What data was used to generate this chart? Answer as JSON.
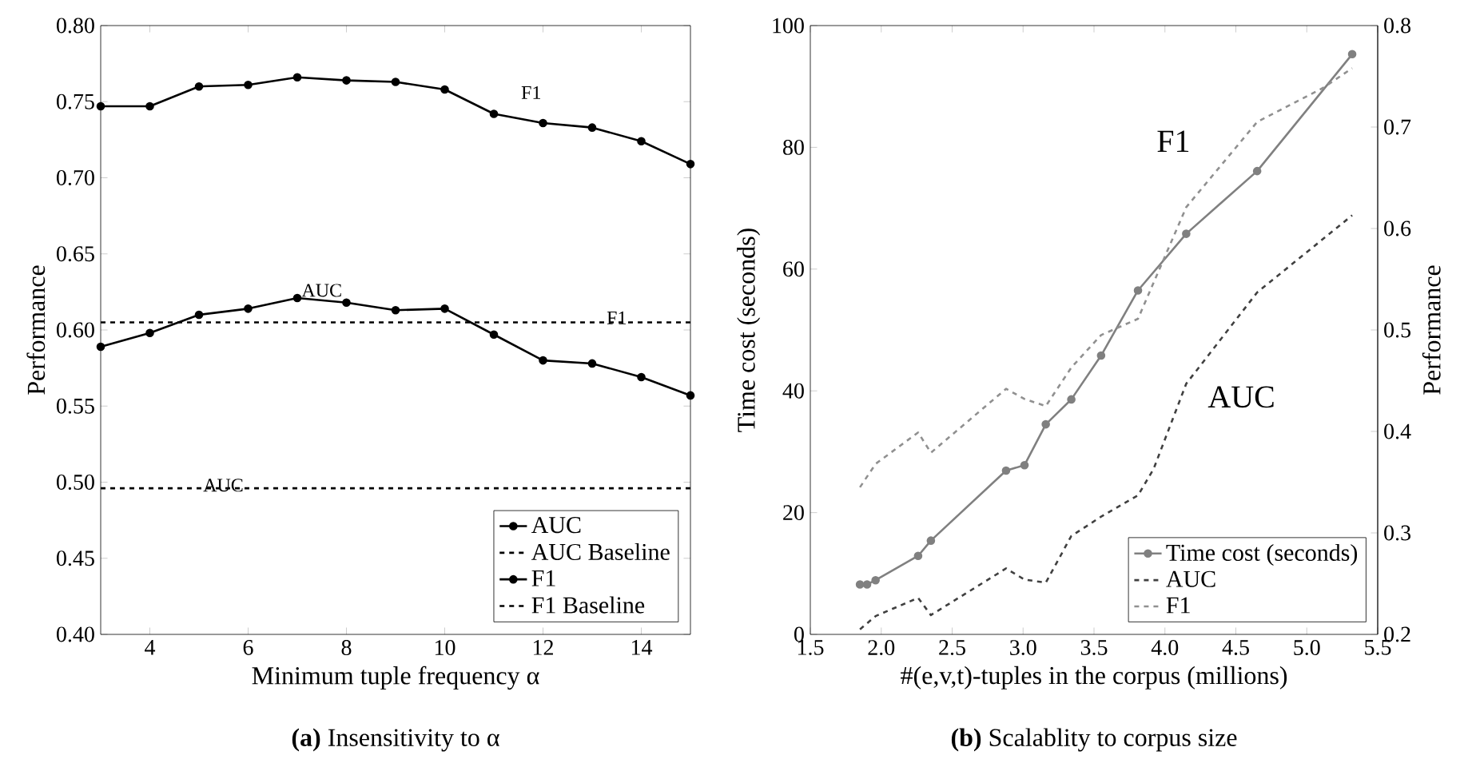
{
  "chart_data": [
    {
      "type": "line",
      "title": "**(a)** Insensitivity to α",
      "xlabel": "Minimum tuple frequency α",
      "ylabel": "Performance",
      "x": [
        3,
        4,
        5,
        6,
        7,
        8,
        9,
        10,
        11,
        12,
        13,
        14,
        15
      ],
      "xlim": [
        3,
        15
      ],
      "xticks": [
        4,
        6,
        8,
        10,
        12,
        14
      ],
      "ylim": [
        0.4,
        0.8
      ],
      "yticks": [
        {
          "value": 0.4,
          "label": "0.40"
        },
        {
          "value": 0.45,
          "label": "0.45"
        },
        {
          "value": 0.5,
          "label": "0.50"
        },
        {
          "value": 0.55,
          "label": "0.55"
        },
        {
          "value": 0.6,
          "label": "0.60"
        },
        {
          "value": 0.65,
          "label": "0.65"
        },
        {
          "value": 0.7,
          "label": "0.70"
        },
        {
          "value": 0.75,
          "label": "0.75"
        },
        {
          "value": 0.8,
          "label": "0.80"
        }
      ],
      "legend": "bottom right",
      "series": [
        {
          "name": "AUC",
          "color": "#000000",
          "marker": "circle",
          "line_style": "solid",
          "values": [
            0.589,
            0.598,
            0.61,
            0.614,
            0.621,
            0.618,
            0.613,
            0.614,
            0.597,
            0.58,
            0.578,
            0.569,
            0.557
          ]
        },
        {
          "name": "AUC Baseline",
          "color": "#000000",
          "marker": "none",
          "line_style": "dashed",
          "x": [
            3,
            15
          ],
          "values": [
            0.496,
            0.496
          ]
        },
        {
          "name": "F1",
          "color": "#000000",
          "marker": "circle",
          "line_style": "solid",
          "values": [
            0.747,
            0.747,
            0.76,
            0.761,
            0.766,
            0.764,
            0.763,
            0.758,
            0.742,
            0.736,
            0.733,
            0.724,
            0.709
          ]
        },
        {
          "name": "F1 Baseline",
          "color": "#000000",
          "marker": "none",
          "line_style": "dashed",
          "x": [
            3,
            15
          ],
          "values": [
            0.605,
            0.605
          ]
        }
      ],
      "annotations": [
        "F1",
        "AUC",
        "F1",
        "AUC"
      ]
    },
    {
      "type": "line",
      "title": "**(b)** Scalablity to corpus size",
      "xlabel": "#(e,v,t)-tuples in the corpus (millions)",
      "ylabel": "Time cost (seconds)",
      "y2label": "Performance",
      "xlim": [
        1.5,
        5.5
      ],
      "xticks": [
        1.5,
        {
          "value": 2,
          "label": "2.0"
        },
        2.5,
        {
          "value": 3,
          "label": "3.0"
        },
        3.5,
        {
          "value": 4,
          "label": "4.0"
        },
        4.5,
        {
          "value": 5,
          "label": "5.0"
        },
        5.5
      ],
      "ylim": [
        0,
        100
      ],
      "yticks": [
        0,
        20,
        40,
        60,
        80,
        100
      ],
      "y2lim": [
        0.2,
        0.8
      ],
      "y2ticks": [
        0.2,
        0.3,
        0.4,
        0.5,
        0.6,
        0.7,
        0.8
      ],
      "legend": "bottom right",
      "series": [
        {
          "name": "Time cost (seconds)",
          "color": "#808080",
          "marker": "circle",
          "line_style": "solid",
          "x": [
            1.85,
            1.9,
            1.96,
            2.26,
            2.35,
            2.88,
            3.01,
            3.16,
            3.34,
            3.55,
            3.81,
            4.15,
            4.65,
            5.32
          ],
          "values": [
            8.2,
            8.2,
            8.9,
            12.9,
            15.4,
            26.9,
            27.8,
            34.5,
            38.6,
            45.8,
            56.5,
            65.8,
            76.1,
            95.3
          ]
        },
        {
          "name": "AUC",
          "color": "#404040",
          "marker": "none",
          "line_style": "dashed",
          "axis": "y2",
          "x": [
            1.85,
            1.96,
            2.26,
            2.35,
            2.88,
            3.01,
            3.16,
            3.34,
            3.55,
            3.81,
            3.92,
            4.15,
            4.65,
            5.32
          ],
          "values": [
            0.205,
            0.218,
            0.236,
            0.219,
            0.265,
            0.254,
            0.251,
            0.297,
            0.316,
            0.337,
            0.363,
            0.447,
            0.537,
            0.613
          ]
        },
        {
          "name": "F1",
          "color": "#909090",
          "marker": "none",
          "line_style": "dashed",
          "axis": "y2",
          "x": [
            1.85,
            1.96,
            2.26,
            2.35,
            2.88,
            3.01,
            3.16,
            3.34,
            3.55,
            3.81,
            4.15,
            4.65,
            5.12,
            5.32
          ],
          "values": [
            0.345,
            0.368,
            0.399,
            0.379,
            0.442,
            0.432,
            0.425,
            0.463,
            0.495,
            0.511,
            0.621,
            0.705,
            0.739,
            0.758
          ]
        }
      ],
      "annotations": [
        "F1",
        "AUC"
      ]
    }
  ]
}
